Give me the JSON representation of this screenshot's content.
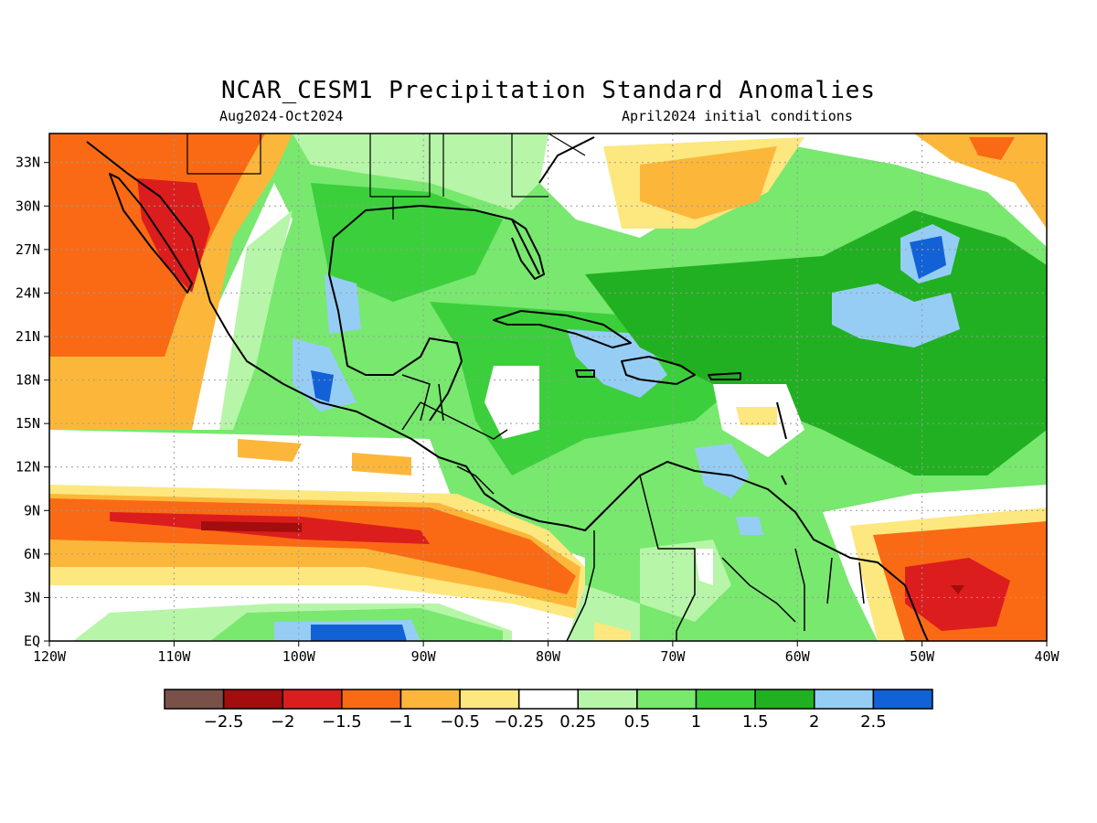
{
  "title": "NCAR_CESM1 Precipitation Standard Anomalies",
  "period": "Aug2024-Oct2024",
  "init": "April2024 initial conditions",
  "lon_labels": [
    "120W",
    "110W",
    "100W",
    "90W",
    "80W",
    "70W",
    "60W",
    "50W",
    "40W"
  ],
  "lat_labels": [
    "EQ",
    "3N",
    "6N",
    "9N",
    "12N",
    "15N",
    "18N",
    "21N",
    "24N",
    "27N",
    "30N",
    "33N"
  ],
  "legend": {
    "colors": [
      "#7a5148",
      "#a30d0d",
      "#dc1d1d",
      "#fa6a14",
      "#fcb73a",
      "#fde77f",
      "#ffffff",
      "#b7f5a8",
      "#78e86f",
      "#3ccf3c",
      "#21b021",
      "#96cdf5",
      "#1261d6"
    ],
    "labels": [
      "-2.5",
      "-2",
      "-1.5",
      "-1",
      "-0.5",
      "-0.25",
      "0.25",
      "0.5",
      "1",
      "1.5",
      "2",
      "2.5"
    ]
  },
  "map_layers": {
    "ocean_base": "#78e86f",
    "land_line": "#000000"
  }
}
